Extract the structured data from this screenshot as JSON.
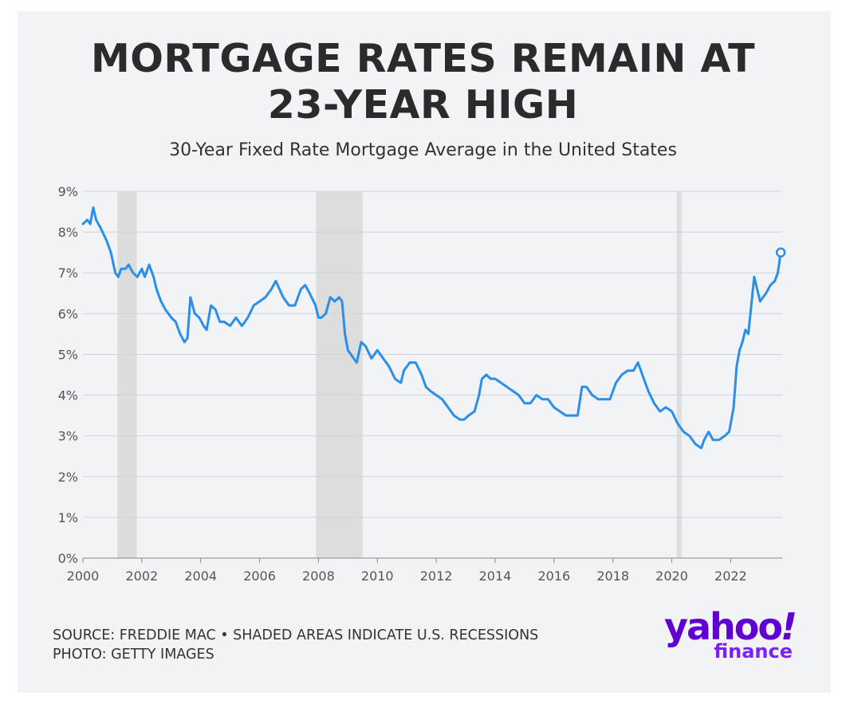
{
  "header": {
    "title_line1": "MORTGAGE RATES REMAIN AT",
    "title_line2": "23-YEAR HIGH",
    "subtitle": "30-Year Fixed Rate Mortgage Average in the United States"
  },
  "footer": {
    "source": "SOURCE: FREDDIE MAC • SHADED AREAS INDICATE U.S. RECESSIONS",
    "photo": "PHOTO: GETTY IMAGES"
  },
  "logo": {
    "word": "yahoo",
    "mark": "!",
    "sub": "finance"
  },
  "colors": {
    "line": "#2b8ee8",
    "recession": "#d8d8d8",
    "grid": "#d0d3d8",
    "logo": "#6001d2"
  },
  "chart_data": {
    "type": "line",
    "title": "MORTGAGE RATES REMAIN AT 23-YEAR HIGH",
    "subtitle": "30-Year Fixed Rate Mortgage Average in the United States",
    "xlabel": "",
    "ylabel": "",
    "xlim": [
      2000,
      2023.75
    ],
    "ylim": [
      0,
      9
    ],
    "x_ticks": [
      2000,
      2002,
      2004,
      2006,
      2008,
      2010,
      2012,
      2014,
      2016,
      2018,
      2020,
      2022
    ],
    "x_tick_labels": [
      "2000",
      "2002",
      "2004",
      "2006",
      "2008",
      "2010",
      "2012",
      "2014",
      "2016",
      "2018",
      "2020",
      "2022"
    ],
    "y_ticks": [
      0,
      1,
      2,
      3,
      4,
      5,
      6,
      7,
      8,
      9
    ],
    "y_tick_labels": [
      "0%",
      "1%",
      "2%",
      "3%",
      "4%",
      "5%",
      "6%",
      "7%",
      "8%",
      "9%"
    ],
    "grid": true,
    "recessions": [
      [
        2001.17,
        2001.83
      ],
      [
        2007.92,
        2009.5
      ],
      [
        2020.17,
        2020.33
      ]
    ],
    "series": [
      {
        "name": "",
        "x": [
          2000.0,
          2000.15,
          2000.25,
          2000.35,
          2000.45,
          2000.6,
          2000.8,
          2000.95,
          2001.1,
          2001.2,
          2001.3,
          2001.45,
          2001.55,
          2001.7,
          2001.85,
          2002.0,
          2002.1,
          2002.25,
          2002.4,
          2002.5,
          2002.65,
          2002.8,
          2003.0,
          2003.15,
          2003.3,
          2003.45,
          2003.55,
          2003.65,
          2003.8,
          2003.95,
          2004.1,
          2004.2,
          2004.35,
          2004.5,
          2004.65,
          2004.8,
          2005.0,
          2005.2,
          2005.4,
          2005.6,
          2005.8,
          2006.0,
          2006.2,
          2006.4,
          2006.55,
          2006.8,
          2007.0,
          2007.2,
          2007.4,
          2007.55,
          2007.7,
          2007.9,
          2008.0,
          2008.1,
          2008.25,
          2008.4,
          2008.55,
          2008.7,
          2008.8,
          2008.9,
          2009.0,
          2009.1,
          2009.2,
          2009.3,
          2009.45,
          2009.6,
          2009.8,
          2010.0,
          2010.2,
          2010.4,
          2010.6,
          2010.8,
          2010.9,
          2011.1,
          2011.3,
          2011.5,
          2011.65,
          2011.8,
          2012.0,
          2012.2,
          2012.4,
          2012.6,
          2012.8,
          2012.95,
          2013.1,
          2013.3,
          2013.45,
          2013.55,
          2013.7,
          2013.85,
          2014.0,
          2014.2,
          2014.4,
          2014.6,
          2014.8,
          2015.0,
          2015.2,
          2015.4,
          2015.6,
          2015.8,
          2016.0,
          2016.2,
          2016.4,
          2016.6,
          2016.8,
          2016.95,
          2017.1,
          2017.3,
          2017.5,
          2017.7,
          2017.9,
          2018.1,
          2018.3,
          2018.5,
          2018.7,
          2018.85,
          2019.0,
          2019.2,
          2019.4,
          2019.6,
          2019.8,
          2020.0,
          2020.2,
          2020.4,
          2020.6,
          2020.8,
          2021.0,
          2021.1,
          2021.25,
          2021.4,
          2021.6,
          2021.8,
          2021.95,
          2022.1,
          2022.2,
          2022.3,
          2022.4,
          2022.5,
          2022.6,
          2022.7,
          2022.8,
          2022.9,
          2023.0,
          2023.1,
          2023.2,
          2023.35,
          2023.5,
          2023.6,
          2023.7
        ],
        "values": [
          8.2,
          8.3,
          8.2,
          8.6,
          8.3,
          8.1,
          7.8,
          7.5,
          7.0,
          6.9,
          7.1,
          7.1,
          7.2,
          7.0,
          6.9,
          7.1,
          6.9,
          7.2,
          6.9,
          6.6,
          6.3,
          6.1,
          5.9,
          5.8,
          5.5,
          5.3,
          5.4,
          6.4,
          6.0,
          5.9,
          5.7,
          5.6,
          6.2,
          6.1,
          5.8,
          5.8,
          5.7,
          5.9,
          5.7,
          5.9,
          6.2,
          6.3,
          6.4,
          6.6,
          6.8,
          6.4,
          6.2,
          6.2,
          6.6,
          6.7,
          6.5,
          6.2,
          5.9,
          5.9,
          6.0,
          6.4,
          6.3,
          6.4,
          6.3,
          5.5,
          5.1,
          5.0,
          4.9,
          4.8,
          5.3,
          5.2,
          4.9,
          5.1,
          4.9,
          4.7,
          4.4,
          4.3,
          4.6,
          4.8,
          4.8,
          4.5,
          4.2,
          4.1,
          4.0,
          3.9,
          3.7,
          3.5,
          3.4,
          3.4,
          3.5,
          3.6,
          4.0,
          4.4,
          4.5,
          4.4,
          4.4,
          4.3,
          4.2,
          4.1,
          4.0,
          3.8,
          3.8,
          4.0,
          3.9,
          3.9,
          3.7,
          3.6,
          3.5,
          3.5,
          3.5,
          4.2,
          4.2,
          4.0,
          3.9,
          3.9,
          3.9,
          4.3,
          4.5,
          4.6,
          4.6,
          4.8,
          4.5,
          4.1,
          3.8,
          3.6,
          3.7,
          3.6,
          3.3,
          3.1,
          3.0,
          2.8,
          2.7,
          2.9,
          3.1,
          2.9,
          2.9,
          3.0,
          3.1,
          3.7,
          4.7,
          5.1,
          5.3,
          5.6,
          5.5,
          6.2,
          6.9,
          6.6,
          6.3,
          6.4,
          6.5,
          6.7,
          6.8,
          7.0,
          7.5
        ]
      }
    ]
  }
}
